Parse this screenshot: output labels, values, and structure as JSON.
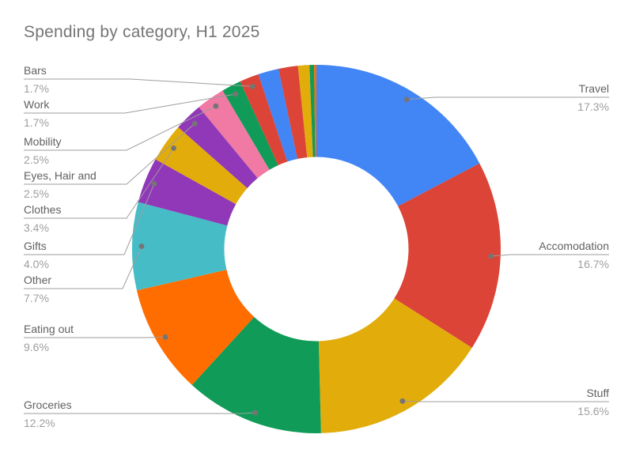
{
  "title": "Spending by category, H1 2025",
  "chart_data": {
    "type": "pie",
    "donut": true,
    "hole_ratio": 0.5,
    "title": "Spending by category, H1 2025",
    "legend_position": "labeled-callouts",
    "slices": [
      {
        "label": "Travel",
        "pct": 17.3,
        "pct_label": "17.3%",
        "color": "#4285F4"
      },
      {
        "label": "Accomodation",
        "pct": 16.7,
        "pct_label": "16.7%",
        "color": "#DB4437"
      },
      {
        "label": "Stuff",
        "pct": 15.6,
        "pct_label": "15.6%",
        "color": "#E2AC0B"
      },
      {
        "label": "Groceries",
        "pct": 12.2,
        "pct_label": "12.2%",
        "color": "#109B58"
      },
      {
        "label": "Eating out",
        "pct": 9.6,
        "pct_label": "9.6%",
        "color": "#FF6D00"
      },
      {
        "label": "Other",
        "pct": 7.7,
        "pct_label": "7.7%",
        "color": "#46BDC6"
      },
      {
        "label": "Gifts",
        "pct": 4.0,
        "pct_label": "4.0%",
        "color": "#9038B8"
      },
      {
        "label": "Clothes",
        "pct": 3.4,
        "pct_label": "3.4%",
        "color": "#E2AC0B"
      },
      {
        "label": "Eyes, Hair and",
        "pct": 2.5,
        "pct_label": "2.5%",
        "color": "#9038B8"
      },
      {
        "label": "Mobility",
        "pct": 2.5,
        "pct_label": "2.5%",
        "color": "#F07AA3"
      },
      {
        "label": "Work",
        "pct": 1.7,
        "pct_label": "1.7%",
        "color": "#109B58"
      },
      {
        "label": "Bars",
        "pct": 1.7,
        "pct_label": "1.7%",
        "color": "#DB4437"
      },
      {
        "label": "",
        "pct": 1.8,
        "color": "#4285F4"
      },
      {
        "label": "",
        "pct": 1.7,
        "color": "#DB4437"
      },
      {
        "label": "",
        "pct": 1.0,
        "color": "#E2AC0B"
      },
      {
        "label": "",
        "pct": 0.4,
        "color": "#109B58"
      },
      {
        "label": "",
        "pct": 0.2,
        "color": "#FF6D00"
      }
    ],
    "text_colors": {
      "title": "#757575",
      "label_name": "#616161",
      "label_pct": "#9e9e9e",
      "leader_line": "#9e9e9e"
    }
  }
}
